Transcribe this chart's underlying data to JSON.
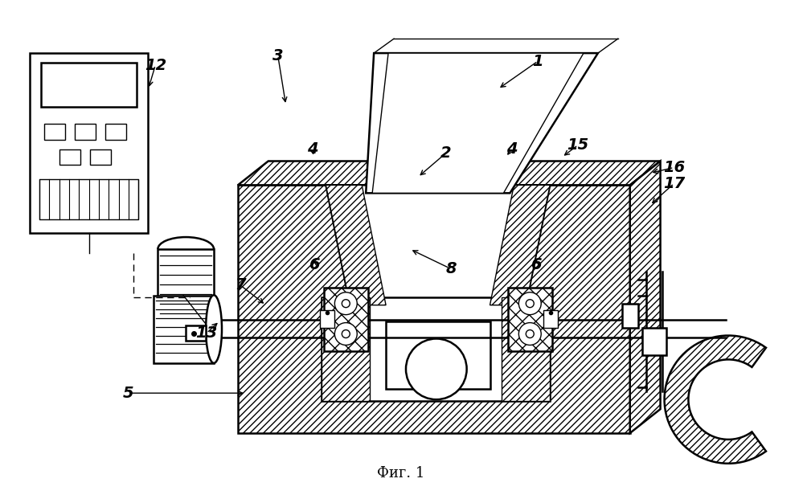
{
  "bg_color": "#ffffff",
  "line_color": "#000000",
  "fig_label": "Фиг. 1",
  "fig_label_fontsize": 13,
  "label_fontsize": 14,
  "lw_main": 1.8,
  "lw_thin": 1.0
}
